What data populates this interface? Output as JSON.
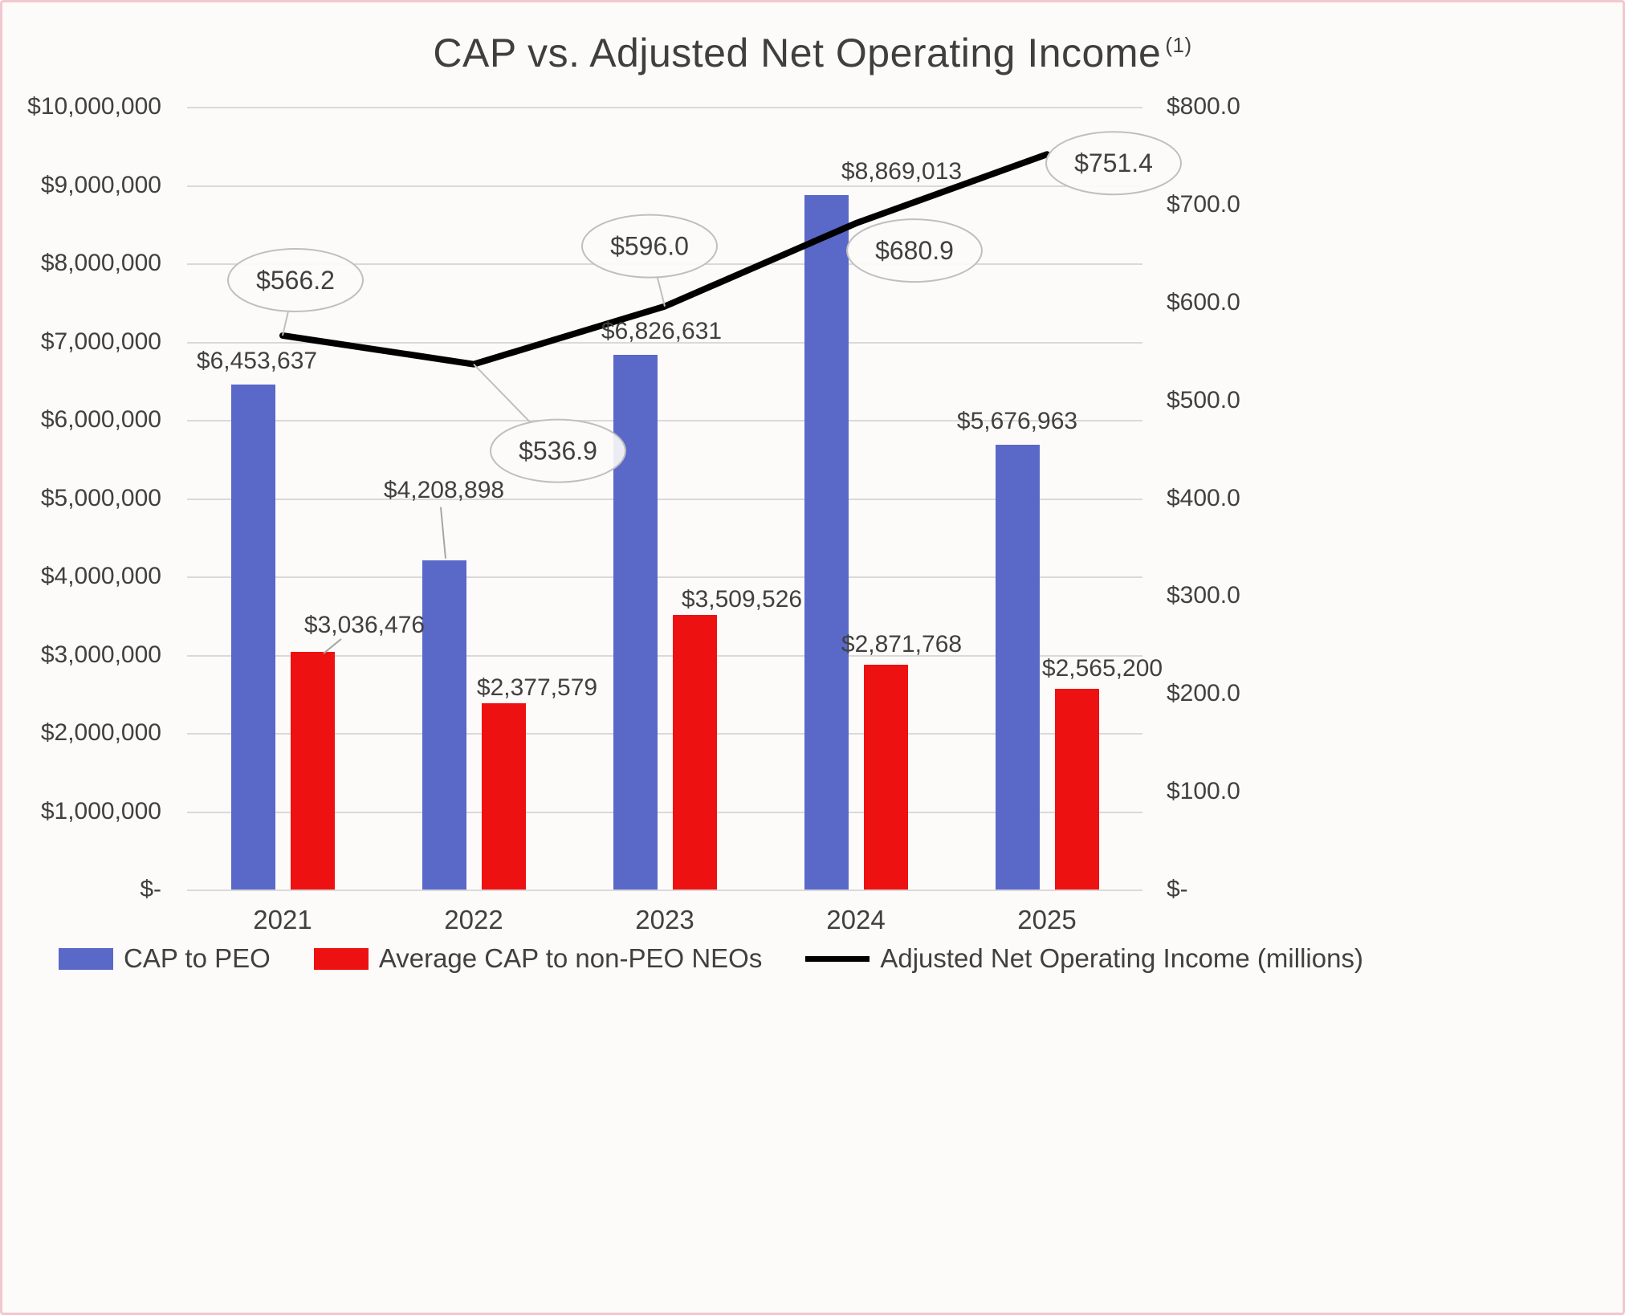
{
  "title": {
    "text": "CAP vs. Adjusted Net Operating Income",
    "superscript": "(1)"
  },
  "chart_data": {
    "type": "combo-bar-line",
    "categories": [
      "2021",
      "2022",
      "2023",
      "2024",
      "2025"
    ],
    "series": [
      {
        "name": "CAP to PEO",
        "type": "bar",
        "axis": "left",
        "color": "#5A68C8",
        "values": [
          6453637,
          4208898,
          6826631,
          8869013,
          5676963
        ],
        "labels": [
          "$6,453,637",
          "$4,208,898",
          "$6,826,631",
          "$8,869,013",
          "$5,676,963"
        ]
      },
      {
        "name": "Average CAP to non-PEO NEOs",
        "type": "bar",
        "axis": "left",
        "color": "#EE1111",
        "values": [
          3036476,
          2377579,
          3509526,
          2871768,
          2565200
        ],
        "labels": [
          "$3,036,476",
          "$2,377,579",
          "$3,509,526",
          "$2,871,768",
          "$2,565,200"
        ]
      },
      {
        "name": "Adjusted Net Operating Income (millions)",
        "type": "line",
        "axis": "right",
        "color": "#000000",
        "values": [
          566.2,
          536.9,
          596.0,
          680.9,
          751.4
        ],
        "labels": [
          "$566.2",
          "$536.9",
          "$596.0",
          "$680.9",
          "$751.4"
        ]
      }
    ],
    "left_axis": {
      "min": 0,
      "max": 10000000,
      "step": 1000000,
      "tick_labels": [
        "$10,000,000",
        "$9,000,000",
        "$8,000,000",
        "$7,000,000",
        "$6,000,000",
        "$5,000,000",
        "$4,000,000",
        "$3,000,000",
        "$2,000,000",
        "$1,000,000",
        "$-"
      ]
    },
    "right_axis": {
      "min": 0,
      "max": 800,
      "step": 100,
      "tick_labels": [
        "$800.0",
        "$700.0",
        "$600.0",
        "$500.0",
        "$400.0",
        "$300.0",
        "$200.0",
        "$100.0",
        "$-"
      ]
    },
    "grid": true,
    "legend_position": "bottom"
  },
  "colors": {
    "grid": "#D9D9D9",
    "axis_text": "#404040",
    "callout_stroke": "#BFBFBF",
    "leader_line": "#A6A6A6",
    "background": "#FCFBFA",
    "border": "#F2C7CE"
  }
}
